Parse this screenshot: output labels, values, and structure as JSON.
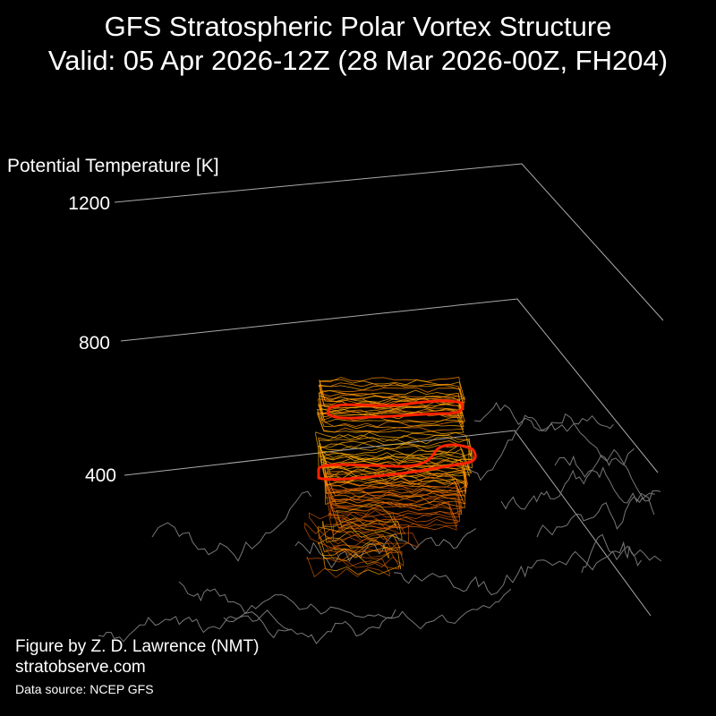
{
  "chart_data": {
    "type": "3d-isosurface",
    "title": "GFS Stratospheric Polar Vortex Structure",
    "subtitle": "Valid: 05 Apr 2026-12Z  (28 Mar 2026-00Z, FH204)",
    "zlabel": "Potential Temperature [K]",
    "z_ticks": [
      "400",
      "800",
      "1200"
    ],
    "colors": {
      "vortex_edge": "#ff2200",
      "contours_warm": "#ffaa00",
      "contours_mid": "#ff8800",
      "contours_low": "#d05a00",
      "grid": "#aaaaaa",
      "coastline": "#777777"
    }
  },
  "credits": {
    "author": "Figure by Z. D. Lawrence (NMT)",
    "site": "stratobserve.com",
    "source": "Data source: NCEP GFS"
  }
}
